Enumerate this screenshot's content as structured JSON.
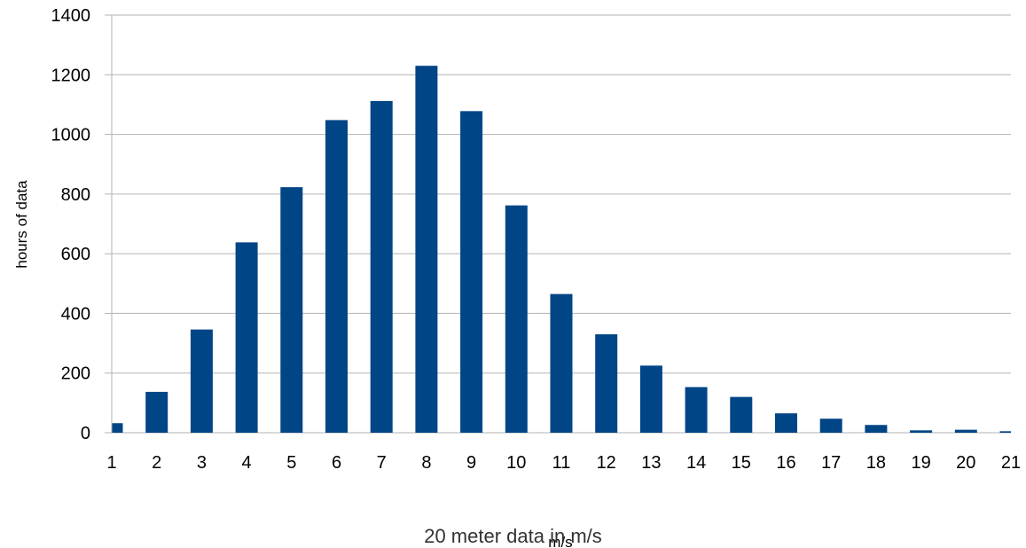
{
  "chart_data": {
    "type": "bar",
    "categories": [
      "1",
      "2",
      "3",
      "4",
      "5",
      "6",
      "7",
      "8",
      "9",
      "10",
      "11",
      "12",
      "13",
      "14",
      "15",
      "16",
      "17",
      "18",
      "19",
      "20",
      "21"
    ],
    "values": [
      32,
      137,
      346,
      638,
      823,
      1048,
      1112,
      1230,
      1078,
      762,
      465,
      330,
      225,
      153,
      120,
      65,
      47,
      26,
      8,
      10,
      5
    ],
    "title": "",
    "xlabel": "m/s",
    "ylabel": "hours of data",
    "ylim": [
      0,
      1400
    ],
    "yticks": [
      0,
      200,
      400,
      600,
      800,
      1000,
      1200,
      1400
    ],
    "grid": true,
    "bar_color": "#004586",
    "grid_color": "#b3b3b3"
  },
  "caption": "20 meter data in m/s"
}
